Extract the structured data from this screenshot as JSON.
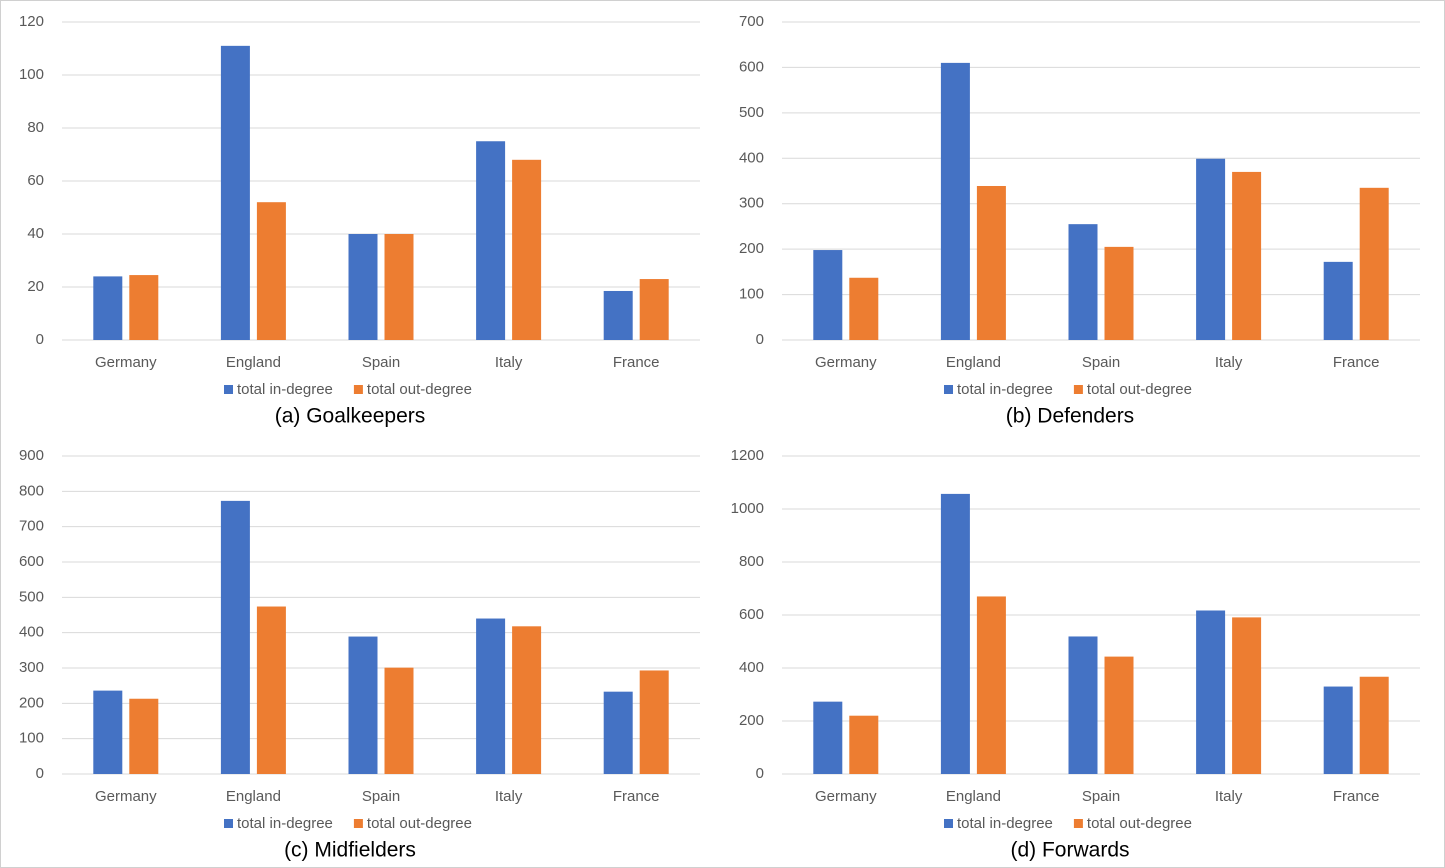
{
  "chart_data": [
    {
      "type": "bar",
      "title": "(a) Goalkeepers",
      "categories": [
        "Germany",
        "England",
        "Spain",
        "Italy",
        "France"
      ],
      "series": [
        {
          "name": "total in-degree",
          "color": "#4472c4",
          "values": [
            24,
            111,
            40,
            75,
            18.5
          ]
        },
        {
          "name": "total out-degree",
          "color": "#ed7d31",
          "values": [
            24.5,
            52,
            40,
            68,
            23
          ]
        }
      ],
      "ylim": [
        0,
        120
      ],
      "yticks": [
        0,
        20,
        40,
        60,
        80,
        100,
        120
      ],
      "grid": true
    },
    {
      "type": "bar",
      "title": "(b) Defenders",
      "categories": [
        "Germany",
        "England",
        "Spain",
        "Italy",
        "France"
      ],
      "series": [
        {
          "name": "total in-degree",
          "color": "#4472c4",
          "values": [
            198,
            610,
            255,
            399,
            172
          ]
        },
        {
          "name": "total out-degree",
          "color": "#ed7d31",
          "values": [
            137,
            339,
            205,
            370,
            335
          ]
        }
      ],
      "ylim": [
        0,
        700
      ],
      "yticks": [
        0,
        100,
        200,
        300,
        400,
        500,
        600,
        700
      ],
      "grid": true
    },
    {
      "type": "bar",
      "title": "(c) Midfielders",
      "categories": [
        "Germany",
        "England",
        "Spain",
        "Italy",
        "France"
      ],
      "series": [
        {
          "name": "total in-degree",
          "color": "#4472c4",
          "values": [
            236,
            773,
            389,
            440,
            233
          ]
        },
        {
          "name": "total out-degree",
          "color": "#ed7d31",
          "values": [
            213,
            474,
            301,
            418,
            293
          ]
        }
      ],
      "ylim": [
        0,
        900
      ],
      "yticks": [
        0,
        100,
        200,
        300,
        400,
        500,
        600,
        700,
        800,
        900
      ],
      "grid": true
    },
    {
      "type": "bar",
      "title": "(d) Forwards",
      "categories": [
        "Germany",
        "England",
        "Spain",
        "Italy",
        "France"
      ],
      "series": [
        {
          "name": "total in-degree",
          "color": "#4472c4",
          "values": [
            273,
            1057,
            519,
            617,
            330
          ]
        },
        {
          "name": "total out-degree",
          "color": "#ed7d31",
          "values": [
            220,
            670,
            443,
            591,
            367
          ]
        }
      ],
      "ylim": [
        0,
        1200
      ],
      "yticks": [
        0,
        200,
        400,
        600,
        800,
        1000,
        1200
      ],
      "grid": true
    }
  ]
}
